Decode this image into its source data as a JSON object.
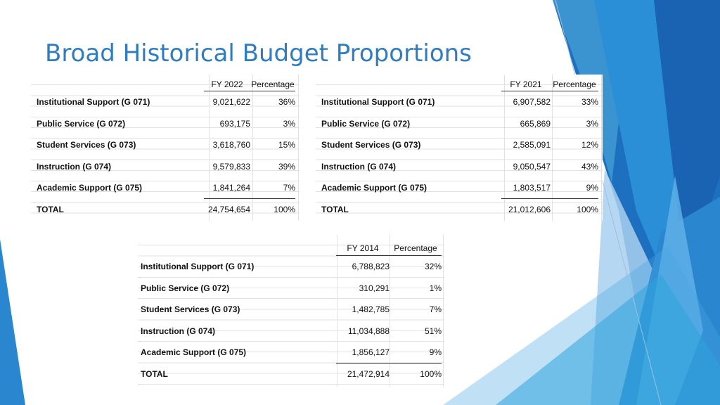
{
  "title": "Broad Historical Budget Proportions",
  "colors": {
    "title": "#2f7dc1",
    "accent_dark": "#1d6fbf",
    "accent_mid": "#2a8fd6",
    "accent_light": "#5fb0e6",
    "accent_pale": "#a9d0ee"
  },
  "tables": {
    "fy2022": {
      "col_year": "FY 2022",
      "col_pct": "Percentage",
      "rows": [
        {
          "label": "Institutional Support (G 071)",
          "amount": "9,021,622",
          "pct": "36%"
        },
        {
          "label": "Public Service (G 072)",
          "amount": "693,175",
          "pct": "3%"
        },
        {
          "label": "Student Services (G 073)",
          "amount": "3,618,760",
          "pct": "15%"
        },
        {
          "label": "Instruction (G 074)",
          "amount": "9,579,833",
          "pct": "39%"
        },
        {
          "label": "Academic Support (G 075)",
          "amount": "1,841,264",
          "pct": "7%"
        },
        {
          "label": "TOTAL",
          "amount": "24,754,654",
          "pct": "100%"
        }
      ]
    },
    "fy2021": {
      "col_year": "FY 2021",
      "col_pct": "Percentage",
      "rows": [
        {
          "label": "Institutional Support (G 071)",
          "amount": "6,907,582",
          "pct": "33%"
        },
        {
          "label": "Public Service (G 072)",
          "amount": "665,869",
          "pct": "3%"
        },
        {
          "label": "Student Services (G 073)",
          "amount": "2,585,091",
          "pct": "12%"
        },
        {
          "label": "Instruction (G 074)",
          "amount": "9,050,547",
          "pct": "43%"
        },
        {
          "label": "Academic Support (G 075)",
          "amount": "1,803,517",
          "pct": "9%"
        },
        {
          "label": "TOTAL",
          "amount": "21,012,606",
          "pct": "100%"
        }
      ]
    },
    "fy2014": {
      "col_year": "FY 2014",
      "col_pct": "Percentage",
      "rows": [
        {
          "label": "Institutional Support (G 071)",
          "amount": "6,788,823",
          "pct": "32%"
        },
        {
          "label": "Public Service (G 072)",
          "amount": "310,291",
          "pct": "1%"
        },
        {
          "label": "Student Services (G 073)",
          "amount": "1,482,785",
          "pct": "7%"
        },
        {
          "label": "Instruction (G 074)",
          "amount": "11,034,888",
          "pct": "51%"
        },
        {
          "label": "Academic Support (G 075)",
          "amount": "1,856,127",
          "pct": "9%"
        },
        {
          "label": "TOTAL",
          "amount": "21,472,914",
          "pct": "100%"
        }
      ]
    }
  }
}
